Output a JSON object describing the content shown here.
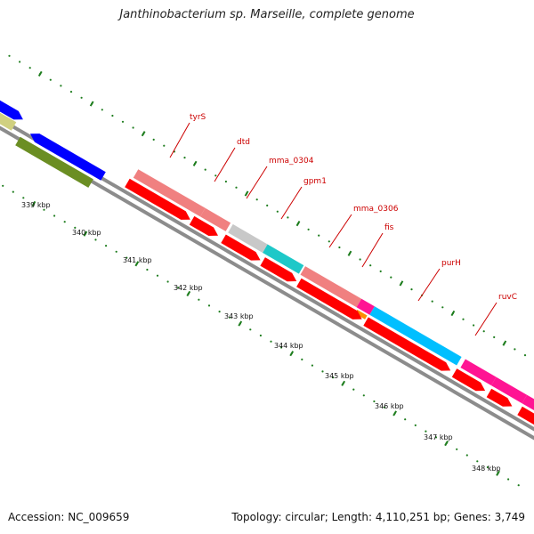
{
  "title": "Janthinobacterium sp. Marseille, complete genome",
  "accession": "Accession: NC_009659",
  "stats": "Topology: circular; Length: 4,110,251 bp; Genes: 3,749",
  "ticks": [
    "339 kbp",
    "340 kbp",
    "341 kbp",
    "342 kbp",
    "343 kbp",
    "344 kbp",
    "345 kbp",
    "346 kbp",
    "347 kbp",
    "348 kbp"
  ],
  "gene_labels": [
    "tyrS",
    "dtd",
    "mma_0304",
    "gpm1",
    "mma_0306",
    "fis",
    "purH",
    "ruvC"
  ],
  "colors": {
    "backbone": "#8c8c8c",
    "tick": "#1e7d1e",
    "cds": "#ff0000",
    "tyrS": "#f08080",
    "dtd": "#f08080",
    "mma_0304": "#c8c8c8",
    "gpm1": "#1ec8c8",
    "mma_0306": "#f08080",
    "fis": "#ff1493",
    "purH": "#00bfff",
    "ruvC": "#ff1493",
    "blue_gene": "#0000ff",
    "olive_gene": "#d0d080",
    "green_gene": "#6b8e23",
    "orange_gene": "#ff8c00"
  }
}
